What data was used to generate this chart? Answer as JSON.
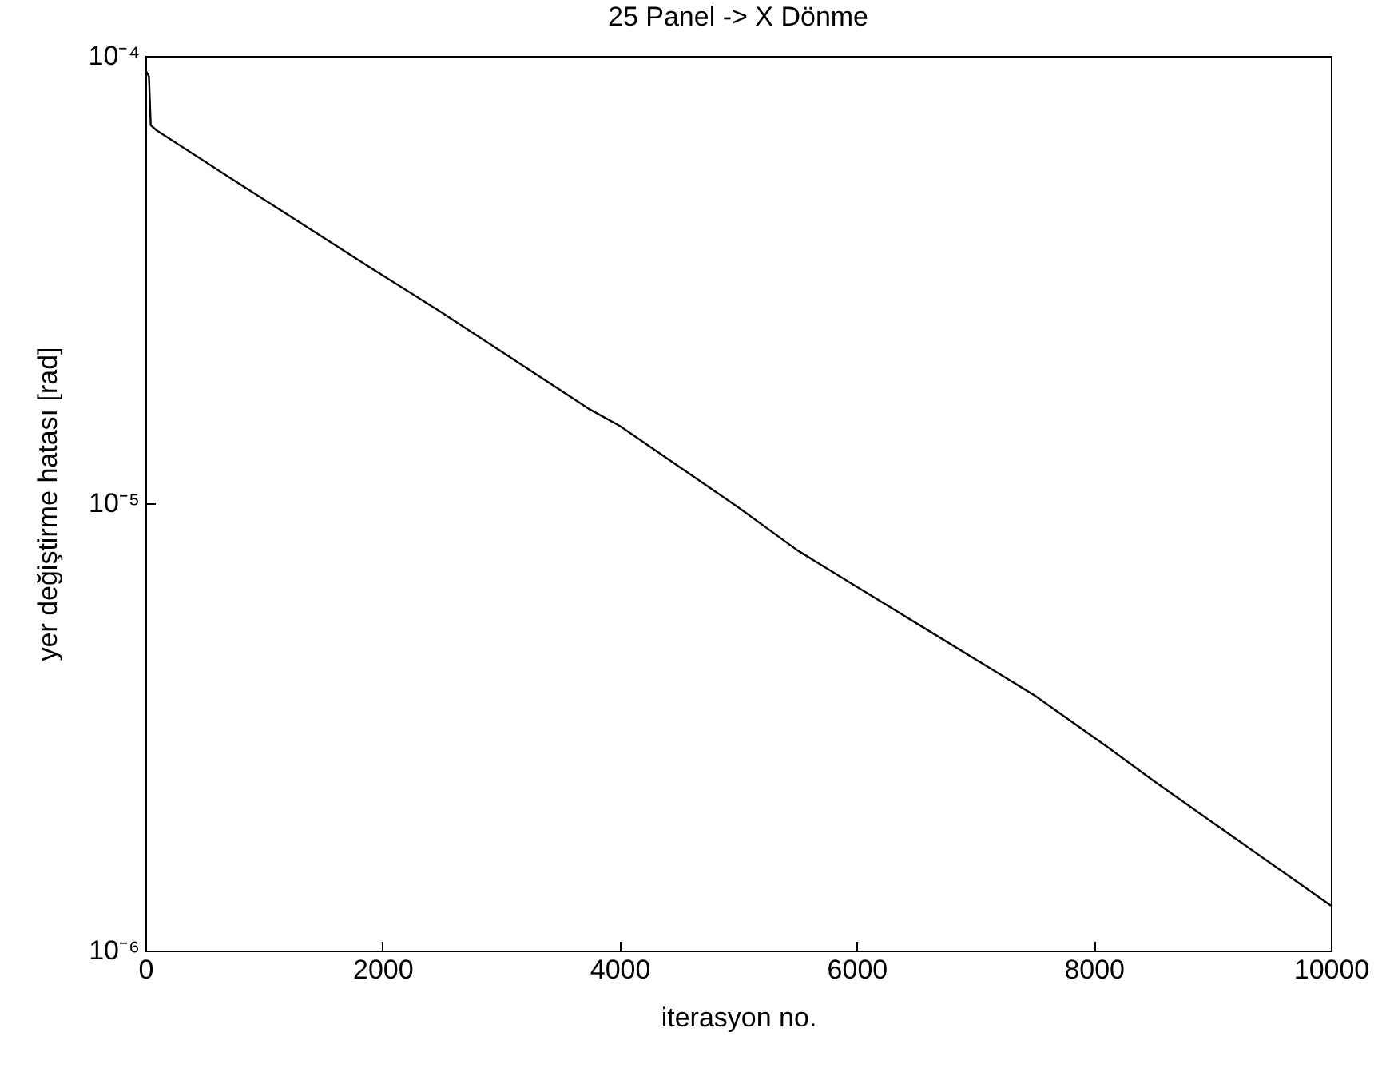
{
  "chart_data": {
    "type": "line",
    "title": "25 Panel -> X Dönme",
    "xlabel": "iterasyon no.",
    "ylabel": "yer değiştirme hatası [rad]",
    "series": [
      {
        "color": "#000000",
        "x": [
          0,
          30,
          45,
          100,
          700,
          1900,
          2500,
          3750,
          4000,
          5000,
          5500,
          6500,
          7500,
          8100,
          8500,
          10000
        ],
        "values": [
          9.3e-05,
          9e-05,
          7e-05,
          6.8e-05,
          5.37e-05,
          3.36e-05,
          2.67e-05,
          1.62e-05,
          1.49e-05,
          9.8e-06,
          7.85e-06,
          5.4e-06,
          3.72e-06,
          2.87e-06,
          2.4e-06,
          1.26e-06
        ]
      }
    ],
    "xlim": [
      0,
      10000
    ],
    "xticks": [
      0,
      2000,
      4000,
      6000,
      8000,
      10000
    ],
    "ylim": [
      1e-06,
      0.0001
    ],
    "yticks": [
      {
        "value": 1e-06,
        "label": "10⁻⁶"
      },
      {
        "value": 1e-05,
        "label": "10⁻⁵"
      },
      {
        "value": 0.0001,
        "label": "10⁻⁴"
      }
    ],
    "log": true,
    "grid": false,
    "line_style": "solid"
  }
}
